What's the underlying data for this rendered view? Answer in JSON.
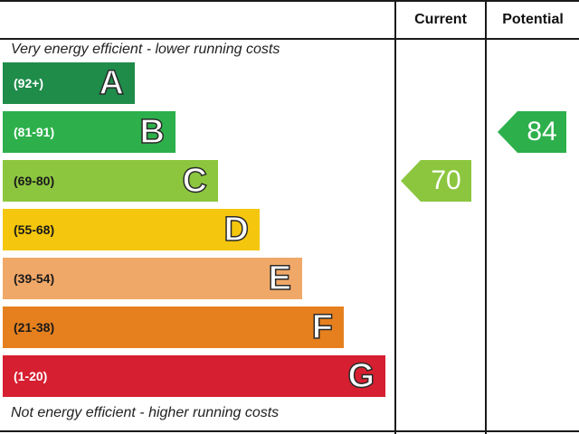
{
  "header": {
    "current_label": "Current",
    "potential_label": "Potential"
  },
  "captions": {
    "top": "Very energy efficient - lower running costs",
    "bottom": "Not energy efficient - higher running costs"
  },
  "chart_data": {
    "type": "bar",
    "bands": [
      {
        "letter": "A",
        "range": "(92+)",
        "color": "#1f8c4a",
        "text_color": "#ffffff"
      },
      {
        "letter": "B",
        "range": "(81-91)",
        "color": "#2db04b",
        "text_color": "#ffffff"
      },
      {
        "letter": "C",
        "range": "(69-80)",
        "color": "#8cc63f",
        "text_color": "#1a1a1a"
      },
      {
        "letter": "D",
        "range": "(55-68)",
        "color": "#f4c60d",
        "text_color": "#1a1a1a"
      },
      {
        "letter": "E",
        "range": "(39-54)",
        "color": "#f0a868",
        "text_color": "#1a1a1a"
      },
      {
        "letter": "F",
        "range": "(21-38)",
        "color": "#e6801f",
        "text_color": "#1a1a1a"
      },
      {
        "letter": "G",
        "range": "(1-20)",
        "color": "#d61f30",
        "text_color": "#ffffff"
      }
    ],
    "current": {
      "value": "70",
      "band": "C",
      "color": "#8cc63f"
    },
    "potential": {
      "value": "84",
      "band": "B",
      "color": "#2db04b"
    }
  }
}
